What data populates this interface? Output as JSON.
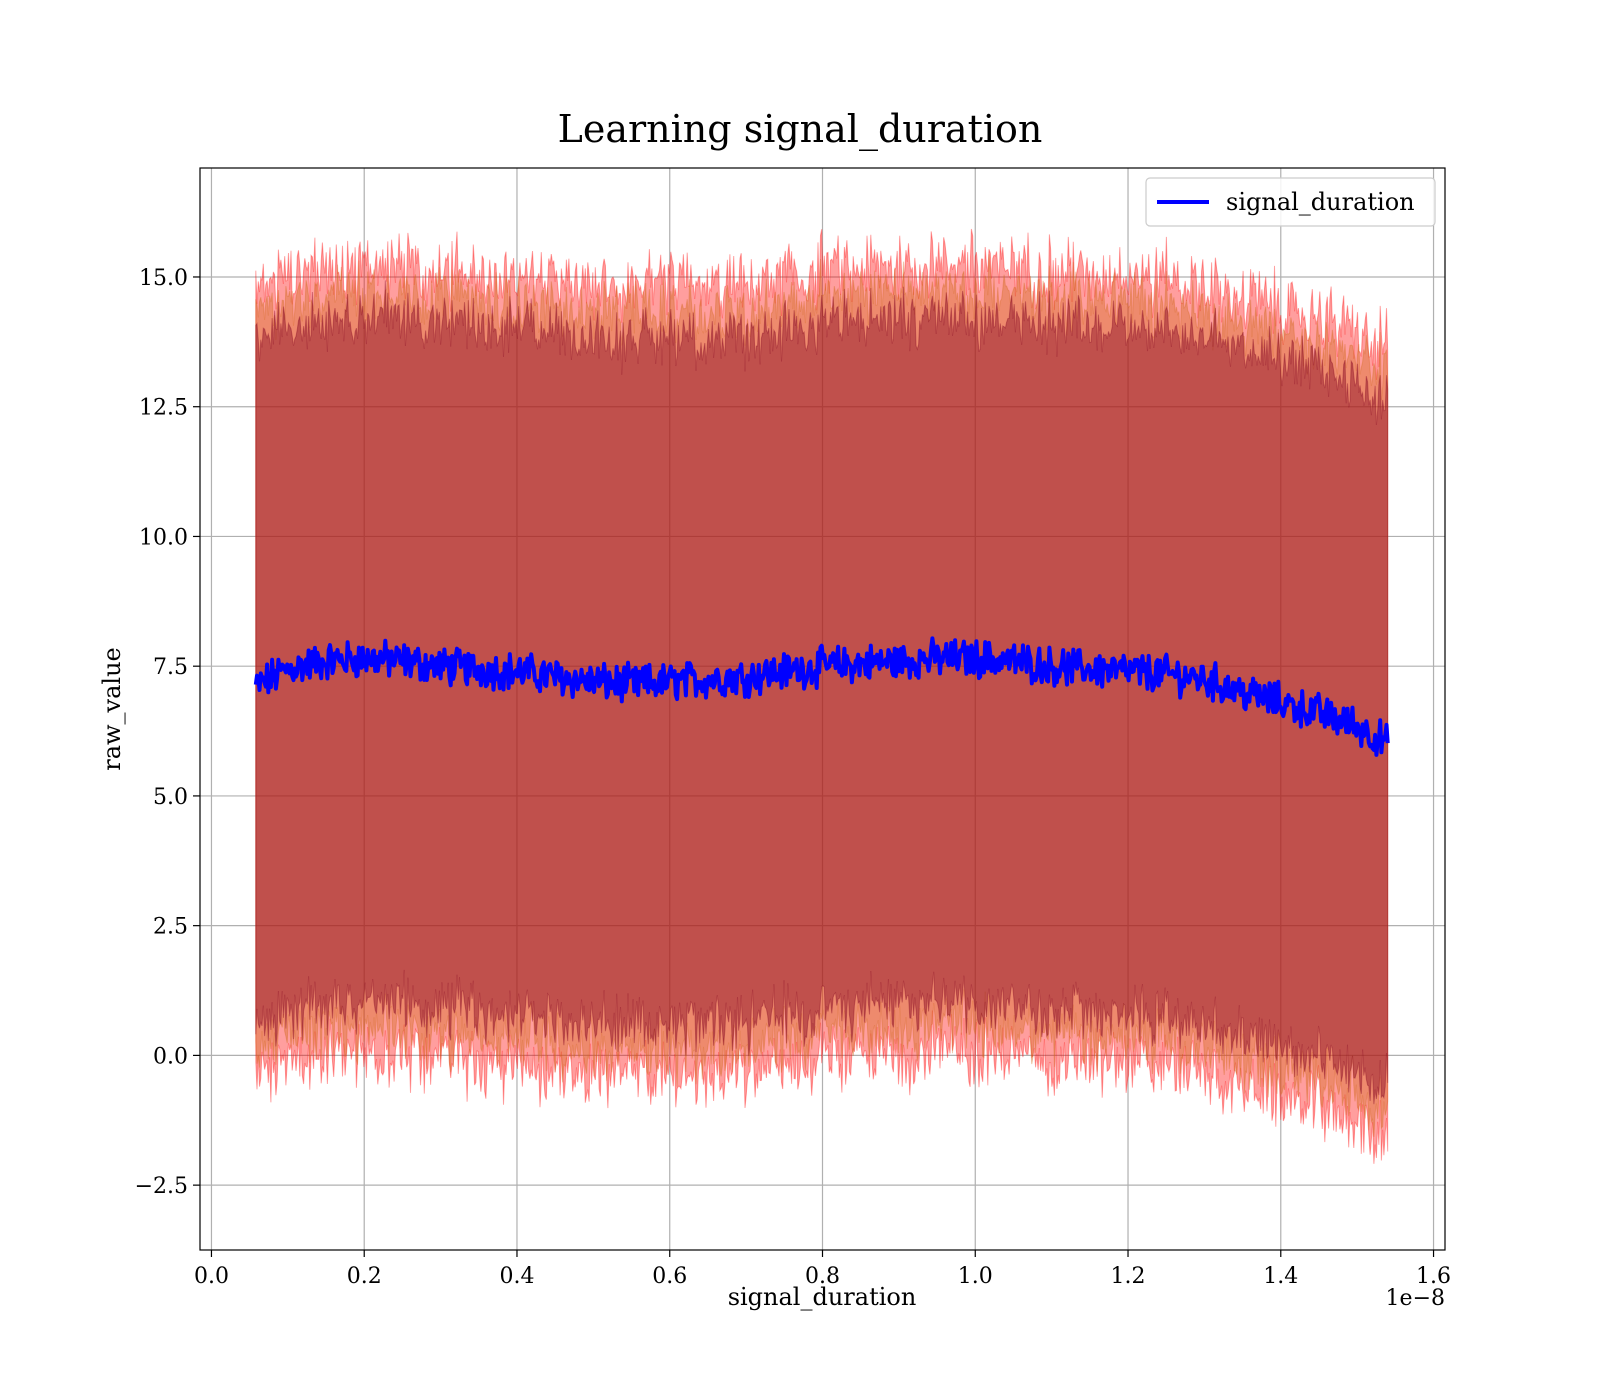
{
  "chart_data": {
    "type": "line",
    "title": "Learning signal_duration",
    "xlabel": "signal_duration",
    "ylabel": "raw_value",
    "x_offset_label": "1e−8",
    "xlim": [
      -0.015,
      1.615
    ],
    "ylim": [
      -3.75,
      17.1
    ],
    "x_ticks": [
      0.0,
      0.2,
      0.4,
      0.6,
      0.8,
      1.0,
      1.2,
      1.4,
      1.6
    ],
    "x_tick_labels": [
      "0.0",
      "0.2",
      "0.4",
      "0.6",
      "0.8",
      "1.0",
      "1.2",
      "1.4",
      "1.6"
    ],
    "y_ticks": [
      -2.5,
      0.0,
      2.5,
      5.0,
      7.5,
      10.0,
      12.5,
      15.0
    ],
    "y_tick_labels": [
      "−2.5",
      "0.0",
      "2.5",
      "5.0",
      "7.5",
      "10.0",
      "12.5",
      "15.0"
    ],
    "grid": true,
    "legend_position": "top-right",
    "colors": {
      "series": "#0000ff",
      "band_outer": "#ff0000",
      "band_mid": "#d2691e",
      "band_inner": "#800020"
    },
    "series": [
      {
        "name": "signal_duration",
        "x_range": [
          0.058,
          1.54
        ],
        "mean": {
          "x": [
            0.058,
            0.1,
            0.15,
            0.2,
            0.25,
            0.3,
            0.35,
            0.4,
            0.45,
            0.5,
            0.55,
            0.6,
            0.65,
            0.7,
            0.75,
            0.8,
            0.85,
            0.9,
            0.95,
            1.0,
            1.05,
            1.1,
            1.15,
            1.2,
            1.25,
            1.3,
            1.35,
            1.4,
            1.45,
            1.5,
            1.54
          ],
          "y": [
            7.1,
            7.45,
            7.6,
            7.65,
            7.6,
            7.5,
            7.45,
            7.4,
            7.3,
            7.2,
            7.15,
            7.2,
            7.25,
            7.3,
            7.4,
            7.5,
            7.55,
            7.6,
            7.65,
            7.65,
            7.6,
            7.5,
            7.45,
            7.4,
            7.35,
            7.25,
            7.0,
            6.8,
            6.6,
            6.35,
            6.0
          ]
        },
        "noise_amplitude": 0.3,
        "bands": [
          {
            "level": "inner",
            "upper_offset": 6.6,
            "lower_offset": 6.6,
            "noise": 0.35
          },
          {
            "level": "mid",
            "upper_offset": 7.1,
            "lower_offset": 7.1,
            "noise": 0.4
          },
          {
            "level": "outer",
            "upper_offset": 7.6,
            "lower_offset": 7.6,
            "noise": 0.45
          }
        ]
      }
    ]
  }
}
